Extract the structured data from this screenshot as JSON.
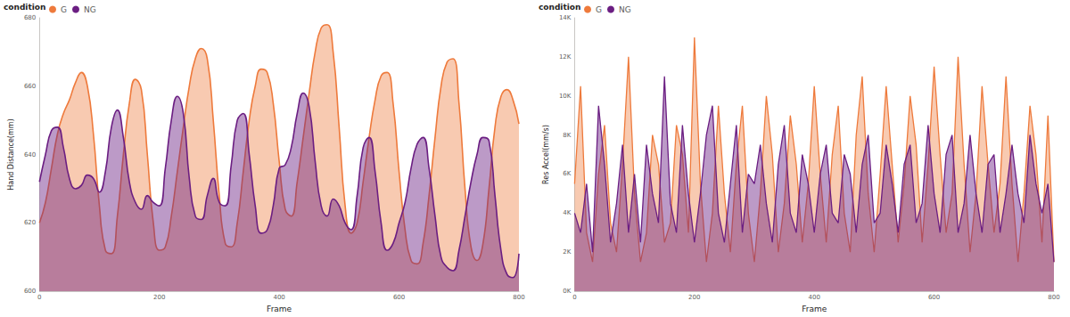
{
  "chart_data": [
    {
      "type": "area",
      "xlabel": "Frame",
      "ylabel": "Hand Distance(mm)",
      "legend": "top-left",
      "legend_title": "condition",
      "grid": false,
      "line_style": "smooth",
      "xlim": [
        0,
        800
      ],
      "xticks": [
        0,
        200,
        400,
        600,
        800
      ],
      "ylim": [
        600,
        680
      ],
      "yticks": [
        600,
        620,
        640,
        660,
        680
      ],
      "x": [
        0,
        10,
        20,
        30,
        40,
        50,
        60,
        70,
        80,
        90,
        100,
        110,
        120,
        130,
        140,
        150,
        160,
        170,
        180,
        190,
        200,
        210,
        220,
        230,
        240,
        250,
        260,
        270,
        280,
        290,
        300,
        310,
        320,
        330,
        340,
        350,
        360,
        370,
        380,
        390,
        400,
        410,
        420,
        430,
        440,
        450,
        460,
        470,
        480,
        490,
        500,
        510,
        520,
        530,
        540,
        550,
        560,
        570,
        580,
        590,
        600,
        610,
        620,
        630,
        640,
        650,
        660,
        670,
        680,
        690,
        700,
        710,
        720,
        730,
        740,
        750,
        760,
        770,
        780,
        790,
        800
      ],
      "series": [
        {
          "name": "G",
          "color": "#ee7a3c",
          "values": [
            620,
            626,
            636,
            646,
            652,
            656,
            661,
            664,
            660,
            646,
            625,
            612,
            611,
            622,
            640,
            655,
            662,
            659,
            640,
            620,
            612,
            613,
            622,
            635,
            648,
            660,
            668,
            671,
            668,
            650,
            628,
            614,
            613,
            620,
            635,
            650,
            660,
            665,
            664,
            655,
            638,
            624,
            622,
            632,
            645,
            658,
            670,
            677,
            678,
            670,
            648,
            625,
            617,
            620,
            632,
            645,
            656,
            663,
            664,
            655,
            635,
            618,
            609,
            608,
            614,
            628,
            645,
            660,
            667,
            668,
            655,
            630,
            613,
            609,
            614,
            630,
            648,
            657,
            659,
            656,
            649
          ]
        },
        {
          "name": "NG",
          "color": "#6b1e82",
          "values": [
            632,
            640,
            647,
            648,
            642,
            633,
            630,
            631,
            634,
            633,
            629,
            635,
            648,
            653,
            645,
            632,
            626,
            624,
            628,
            626,
            625,
            636,
            650,
            657,
            652,
            633,
            622,
            621,
            628,
            633,
            626,
            625,
            637,
            650,
            652,
            640,
            625,
            617,
            618,
            625,
            636,
            637,
            642,
            652,
            658,
            654,
            638,
            625,
            622,
            627,
            625,
            620,
            618,
            628,
            642,
            645,
            635,
            620,
            612,
            614,
            620,
            626,
            636,
            643,
            645,
            636,
            622,
            610,
            607,
            606,
            612,
            622,
            632,
            640,
            645,
            644,
            628,
            612,
            605,
            604,
            611
          ]
        }
      ]
    },
    {
      "type": "area",
      "xlabel": "Frame",
      "ylabel": "Res Accel(mm/s)",
      "legend": "top-left",
      "legend_title": "condition",
      "grid": false,
      "line_style": "solid",
      "xlim": [
        0,
        800
      ],
      "xticks": [
        0,
        200,
        400,
        600,
        800
      ],
      "ylim": [
        0,
        14000
      ],
      "yticks": [
        {
          "value": 0,
          "label": "0K"
        },
        {
          "value": 2000,
          "label": "2K"
        },
        {
          "value": 4000,
          "label": "4K"
        },
        {
          "value": 6000,
          "label": "6K"
        },
        {
          "value": 8000,
          "label": "8K"
        },
        {
          "value": 10000,
          "label": "10K"
        },
        {
          "value": 12000,
          "label": "12K"
        },
        {
          "value": 14000,
          "label": "14K"
        }
      ],
      "x": [
        0,
        10,
        20,
        30,
        40,
        50,
        60,
        70,
        80,
        90,
        100,
        110,
        120,
        130,
        140,
        150,
        160,
        170,
        180,
        190,
        200,
        210,
        220,
        230,
        240,
        250,
        260,
        270,
        280,
        290,
        300,
        310,
        320,
        330,
        340,
        350,
        360,
        370,
        380,
        390,
        400,
        410,
        420,
        430,
        440,
        450,
        460,
        470,
        480,
        490,
        500,
        510,
        520,
        530,
        540,
        550,
        560,
        570,
        580,
        590,
        600,
        610,
        620,
        630,
        640,
        650,
        660,
        670,
        680,
        690,
        700,
        710,
        720,
        730,
        740,
        750,
        760,
        770,
        780,
        790,
        800
      ],
      "series": [
        {
          "name": "G",
          "color": "#ee7a3c",
          "values": [
            5500,
            10500,
            3000,
            1500,
            6000,
            8500,
            3500,
            2000,
            6500,
            12000,
            5000,
            1500,
            3000,
            8000,
            6500,
            2500,
            3500,
            8500,
            7000,
            3000,
            13000,
            5500,
            1500,
            4000,
            9500,
            5000,
            2000,
            6500,
            9500,
            4000,
            1500,
            5000,
            10000,
            7000,
            2000,
            4500,
            9000,
            6500,
            2500,
            5500,
            10500,
            6000,
            2500,
            7000,
            9500,
            4000,
            2000,
            8000,
            11000,
            5000,
            2000,
            6000,
            10500,
            6500,
            2500,
            5500,
            10000,
            7500,
            2500,
            6500,
            11500,
            7000,
            3000,
            5000,
            12000,
            6500,
            2000,
            5000,
            10500,
            6500,
            3000,
            5500,
            11000,
            5500,
            1500,
            5000,
            9500,
            7000,
            2500,
            9000,
            1500
          ]
        },
        {
          "name": "NG",
          "color": "#6b1e82",
          "values": [
            4000,
            3000,
            5500,
            2000,
            9500,
            6500,
            2500,
            4500,
            7500,
            3000,
            6000,
            2500,
            7500,
            5000,
            3500,
            11000,
            4500,
            3000,
            8500,
            5000,
            2500,
            5000,
            8000,
            9500,
            4000,
            2500,
            5500,
            8500,
            3000,
            6000,
            5500,
            7500,
            4500,
            2500,
            6500,
            8500,
            4000,
            3000,
            7000,
            5500,
            3000,
            6000,
            7500,
            4000,
            3500,
            7000,
            6000,
            3000,
            6500,
            8000,
            3500,
            4000,
            7500,
            5500,
            3000,
            6500,
            7500,
            3500,
            4500,
            8500,
            5000,
            3000,
            7000,
            8000,
            3000,
            4500,
            8000,
            5000,
            3000,
            6500,
            7000,
            3000,
            5000,
            7500,
            5000,
            3500,
            8000,
            5500,
            4000,
            5500,
            1500
          ]
        }
      ]
    }
  ]
}
